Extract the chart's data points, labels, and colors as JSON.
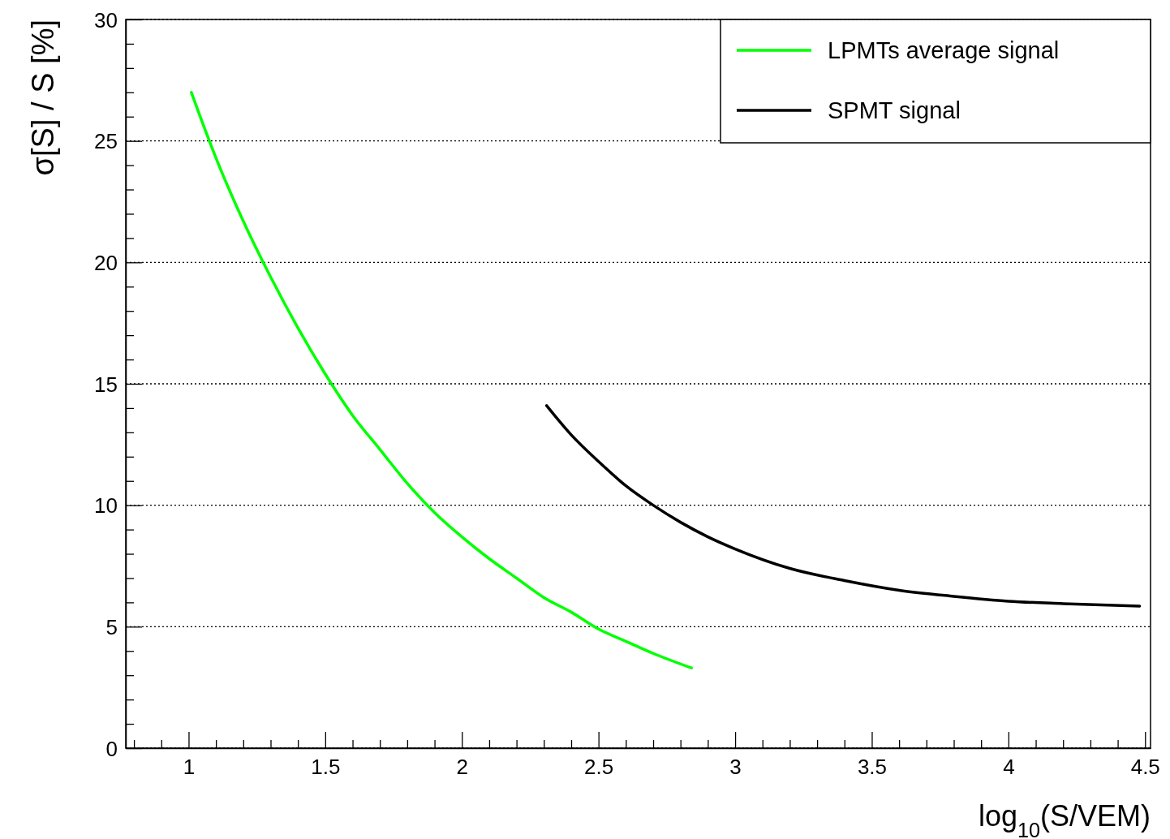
{
  "chart_data": {
    "type": "line",
    "xlabel": "log$_{10}$(S/VEM)",
    "ylabel": "σ[S] / S [%]",
    "xlim": [
      0.77,
      4.52
    ],
    "ylim": [
      0,
      30
    ],
    "xticks": [
      {
        "value": 0.8,
        "label": null
      },
      {
        "value": 0.9,
        "label": null
      },
      1,
      {
        "value": 1.1,
        "label": null
      },
      {
        "value": 1.2,
        "label": null
      },
      {
        "value": 1.3,
        "label": null
      },
      {
        "value": 1.4,
        "label": null
      },
      1.5,
      {
        "value": 1.6,
        "label": null
      },
      {
        "value": 1.7,
        "label": null
      },
      {
        "value": 1.8,
        "label": null
      },
      {
        "value": 1.9,
        "label": null
      },
      2,
      {
        "value": 2.1,
        "label": null
      },
      {
        "value": 2.2,
        "label": null
      },
      {
        "value": 2.3,
        "label": null
      },
      {
        "value": 2.4,
        "label": null
      },
      2.5,
      {
        "value": 2.6,
        "label": null
      },
      {
        "value": 2.7,
        "label": null
      },
      {
        "value": 2.8,
        "label": null
      },
      {
        "value": 2.9,
        "label": null
      },
      3,
      {
        "value": 3.1,
        "label": null
      },
      {
        "value": 3.2,
        "label": null
      },
      {
        "value": 3.3,
        "label": null
      },
      {
        "value": 3.4,
        "label": null
      },
      3.5,
      {
        "value": 3.6,
        "label": null
      },
      {
        "value": 3.7,
        "label": null
      },
      {
        "value": 3.8,
        "label": null
      },
      {
        "value": 3.9,
        "label": null
      },
      4,
      {
        "value": 4.1,
        "label": null
      },
      {
        "value": 4.2,
        "label": null
      },
      {
        "value": 4.3,
        "label": null
      },
      {
        "value": 4.4,
        "label": null
      },
      4.5
    ],
    "yticks": [
      0,
      {
        "value": 1,
        "label": null
      },
      {
        "value": 2,
        "label": null
      },
      {
        "value": 3,
        "label": null
      },
      {
        "value": 4,
        "label": null
      },
      5,
      {
        "value": 6,
        "label": null
      },
      {
        "value": 7,
        "label": null
      },
      {
        "value": 8,
        "label": null
      },
      {
        "value": 9,
        "label": null
      },
      10,
      {
        "value": 11,
        "label": null
      },
      {
        "value": 12,
        "label": null
      },
      {
        "value": 13,
        "label": null
      },
      {
        "value": 14,
        "label": null
      },
      15,
      {
        "value": 16,
        "label": null
      },
      {
        "value": 17,
        "label": null
      },
      {
        "value": 18,
        "label": null
      },
      {
        "value": 19,
        "label": null
      },
      20,
      {
        "value": 21,
        "label": null
      },
      {
        "value": 22,
        "label": null
      },
      {
        "value": 23,
        "label": null
      },
      {
        "value": 24,
        "label": null
      },
      25,
      {
        "value": 26,
        "label": null
      },
      {
        "value": 27,
        "label": null
      },
      {
        "value": 28,
        "label": null
      },
      {
        "value": 29,
        "label": null
      },
      30
    ],
    "grid": "y",
    "legend": "top right",
    "marker": "none",
    "line_style": "solid",
    "series": [
      {
        "name": "LPMTs average signal",
        "color": "#00ff00",
        "x": [
          1.01,
          1.1,
          1.2,
          1.3,
          1.4,
          1.5,
          1.6,
          1.7,
          1.8,
          1.9,
          2.0,
          2.1,
          2.2,
          2.3,
          2.4,
          2.5,
          2.6,
          2.7,
          2.84
        ],
        "values": [
          27.0,
          24.3,
          21.7,
          19.4,
          17.3,
          15.4,
          13.7,
          12.3,
          10.9,
          9.7,
          8.7,
          7.8,
          7.0,
          6.2,
          5.6,
          4.9,
          4.4,
          3.9,
          3.3
        ]
      },
      {
        "name": "SPMT signal",
        "color": "#000000",
        "x": [
          2.31,
          2.4,
          2.5,
          2.6,
          2.7,
          2.8,
          2.9,
          3.0,
          3.2,
          3.4,
          3.6,
          3.8,
          4.0,
          4.2,
          4.48
        ],
        "values": [
          14.1,
          12.9,
          11.8,
          10.8,
          10.0,
          9.3,
          8.7,
          8.2,
          7.4,
          6.9,
          6.5,
          6.25,
          6.05,
          5.95,
          5.85
        ]
      }
    ]
  }
}
